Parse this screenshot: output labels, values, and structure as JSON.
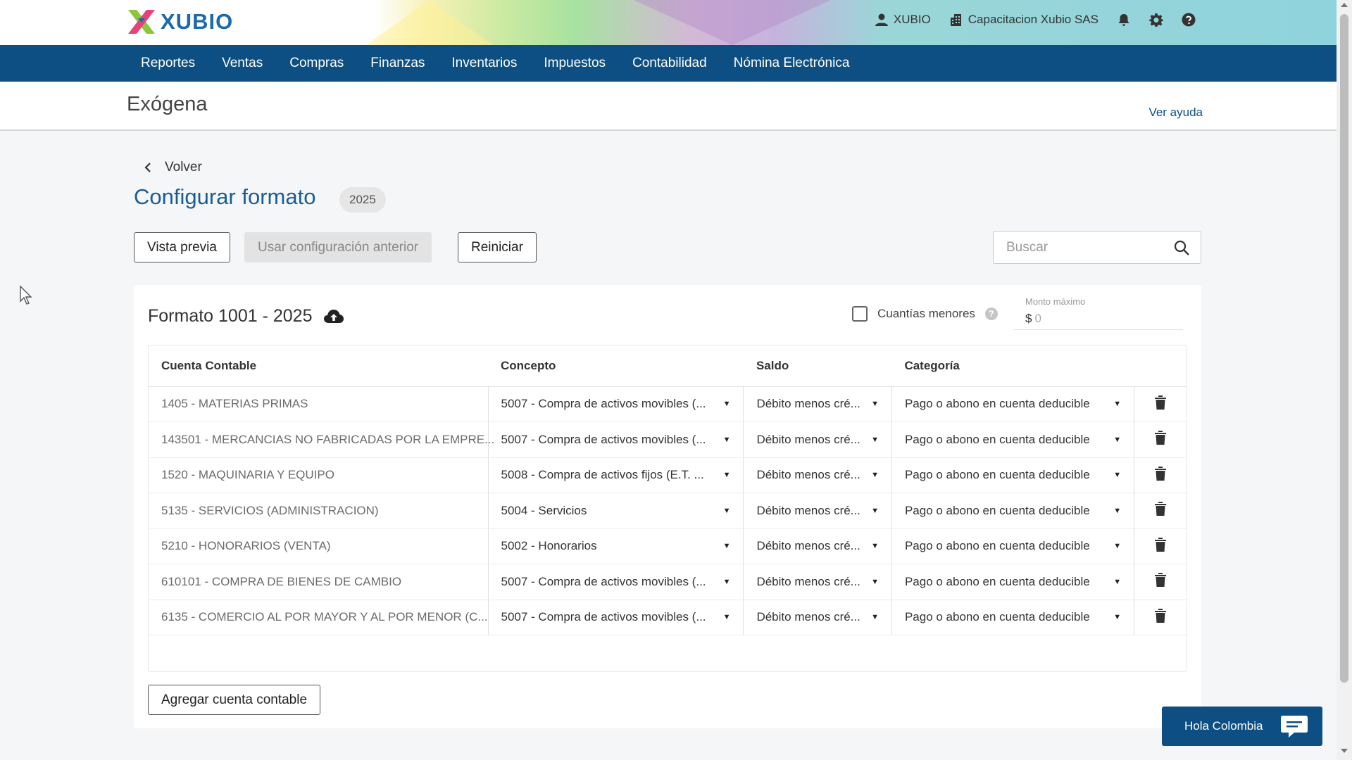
{
  "brand": {
    "name": "XUBIO"
  },
  "topbar": {
    "user": "XUBIO",
    "company": "Capacitacion Xubio SAS"
  },
  "nav": [
    "Reportes",
    "Ventas",
    "Compras",
    "Finanzas",
    "Inventarios",
    "Impuestos",
    "Contabilidad",
    "Nómina Electrónica"
  ],
  "page": {
    "title": "Exógena",
    "help_link": "Ver ayuda"
  },
  "back_label": "Volver",
  "config": {
    "title": "Configurar formato",
    "year": "2025"
  },
  "actions": {
    "preview": "Vista previa",
    "use_previous": "Usar configuración anterior",
    "reset": "Reiniciar"
  },
  "search": {
    "placeholder": "Buscar"
  },
  "format": {
    "title": "Formato 1001 - 2025",
    "cuantias_label": "Cuantías menores",
    "cuantias_checked": false,
    "monto_label": "Monto máximo",
    "monto_currency": "$",
    "monto_value": "0"
  },
  "table": {
    "headers": [
      "Cuenta Contable",
      "Concepto",
      "Saldo",
      "Categoría"
    ],
    "rows": [
      {
        "cuenta": "1405 - MATERIAS PRIMAS",
        "concepto": "5007 - Compra de activos movibles (...",
        "saldo": "Débito menos cré...",
        "categoria": "Pago o abono en cuenta deducible"
      },
      {
        "cuenta": "143501 - MERCANCIAS NO FABRICADAS POR LA EMPRE...",
        "concepto": "5007 - Compra de activos movibles (...",
        "saldo": "Débito menos cré...",
        "categoria": "Pago o abono en cuenta deducible"
      },
      {
        "cuenta": "1520 - MAQUINARIA Y EQUIPO",
        "concepto": "5008 - Compra de activos fijos (E.T. ...",
        "saldo": "Débito menos cré...",
        "categoria": "Pago o abono en cuenta deducible"
      },
      {
        "cuenta": "5135 - SERVICIOS (ADMINISTRACION)",
        "concepto": "5004 - Servicios",
        "saldo": "Débito menos cré...",
        "categoria": "Pago o abono en cuenta deducible"
      },
      {
        "cuenta": "5210 - HONORARIOS (VENTA)",
        "concepto": "5002 - Honorarios",
        "saldo": "Débito menos cré...",
        "categoria": "Pago o abono en cuenta deducible"
      },
      {
        "cuenta": "610101 - COMPRA DE BIENES DE CAMBIO",
        "concepto": "5007 - Compra de activos movibles (...",
        "saldo": "Débito menos cré...",
        "categoria": "Pago o abono en cuenta deducible"
      },
      {
        "cuenta": "6135 - COMERCIO AL POR MAYOR Y AL POR MENOR (C...",
        "concepto": "5007 - Compra de activos movibles (...",
        "saldo": "Débito menos cré...",
        "categoria": "Pago o abono en cuenta deducible"
      }
    ]
  },
  "add_account": "Agregar cuenta contable",
  "chat": {
    "label": "Hola Colombia"
  },
  "colors": {
    "nav_bg": "#0d4f82",
    "title_blue": "#1a5d93",
    "brand_blue": "#1c6aa7"
  }
}
